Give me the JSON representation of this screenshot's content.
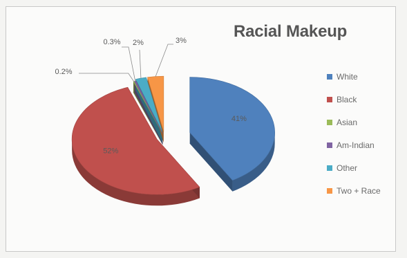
{
  "chart_data": {
    "type": "pie",
    "title": "Racial Makeup",
    "categories": [
      "White",
      "Black",
      "Asian",
      "Am-Indian",
      "Other",
      "Two + Race"
    ],
    "values": [
      41,
      52,
      0.2,
      0.3,
      2,
      3
    ],
    "value_labels": [
      "41%",
      "52%",
      "0.2%",
      "0.3%",
      "2%",
      "3%"
    ],
    "legend_position": "right",
    "colors": [
      "#4f81bd",
      "#c0504d",
      "#9bbb59",
      "#8064a2",
      "#4bacc6",
      "#f79646"
    ]
  }
}
